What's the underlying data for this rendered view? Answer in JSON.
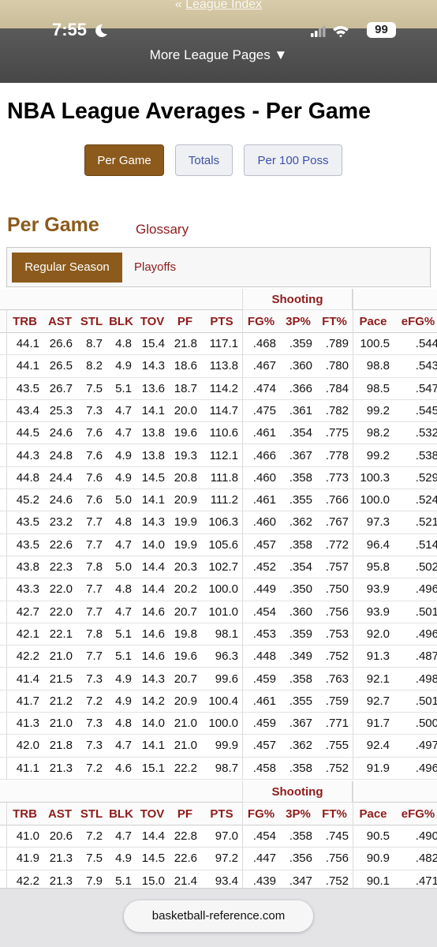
{
  "status_bar": {
    "time": "7:55",
    "battery": "99"
  },
  "top_link": "League Index",
  "nav": {
    "more": "More League Pages ▼"
  },
  "header": {
    "title": "NBA League Averages - Per Game"
  },
  "buttons": [
    "Per Game",
    "Totals",
    "Per 100 Poss"
  ],
  "section": {
    "heading": "Per Game",
    "glossary": "Glossary"
  },
  "tabs": [
    "Regular Season",
    "Playoffs"
  ],
  "table": {
    "group_header": "Shooting",
    "columns": [
      "TRB",
      "AST",
      "STL",
      "BLK",
      "TOV",
      "PF",
      "PTS",
      "FG%",
      "3P%",
      "FT%",
      "Pace",
      "eFG%"
    ],
    "rows": [
      [
        "44.1",
        "26.6",
        "8.7",
        "4.8",
        "15.4",
        "21.8",
        "117.1",
        ".468",
        ".359",
        ".789",
        "100.5",
        ".544"
      ],
      [
        "44.1",
        "26.5",
        "8.2",
        "4.9",
        "14.3",
        "18.6",
        "113.8",
        ".467",
        ".360",
        ".780",
        "98.8",
        ".543"
      ],
      [
        "43.5",
        "26.7",
        "7.5",
        "5.1",
        "13.6",
        "18.7",
        "114.2",
        ".474",
        ".366",
        ".784",
        "98.5",
        ".547"
      ],
      [
        "43.4",
        "25.3",
        "7.3",
        "4.7",
        "14.1",
        "20.0",
        "114.7",
        ".475",
        ".361",
        ".782",
        "99.2",
        ".545"
      ],
      [
        "44.5",
        "24.6",
        "7.6",
        "4.7",
        "13.8",
        "19.6",
        "110.6",
        ".461",
        ".354",
        ".775",
        "98.2",
        ".532"
      ],
      [
        "44.3",
        "24.8",
        "7.6",
        "4.9",
        "13.8",
        "19.3",
        "112.1",
        ".466",
        ".367",
        ".778",
        "99.2",
        ".538"
      ],
      [
        "44.8",
        "24.4",
        "7.6",
        "4.9",
        "14.5",
        "20.8",
        "111.8",
        ".460",
        ".358",
        ".773",
        "100.3",
        ".529"
      ],
      [
        "45.2",
        "24.6",
        "7.6",
        "5.0",
        "14.1",
        "20.9",
        "111.2",
        ".461",
        ".355",
        ".766",
        "100.0",
        ".524"
      ],
      [
        "43.5",
        "23.2",
        "7.7",
        "4.8",
        "14.3",
        "19.9",
        "106.3",
        ".460",
        ".362",
        ".767",
        "97.3",
        ".521"
      ],
      [
        "43.5",
        "22.6",
        "7.7",
        "4.7",
        "14.0",
        "19.9",
        "105.6",
        ".457",
        ".358",
        ".772",
        "96.4",
        ".514"
      ],
      [
        "43.8",
        "22.3",
        "7.8",
        "5.0",
        "14.4",
        "20.3",
        "102.7",
        ".452",
        ".354",
        ".757",
        "95.8",
        ".502"
      ],
      [
        "43.3",
        "22.0",
        "7.7",
        "4.8",
        "14.4",
        "20.2",
        "100.0",
        ".449",
        ".350",
        ".750",
        "93.9",
        ".496"
      ],
      [
        "42.7",
        "22.0",
        "7.7",
        "4.7",
        "14.6",
        "20.7",
        "101.0",
        ".454",
        ".360",
        ".756",
        "93.9",
        ".501"
      ],
      [
        "42.1",
        "22.1",
        "7.8",
        "5.1",
        "14.6",
        "19.8",
        "98.1",
        ".453",
        ".359",
        ".753",
        "92.0",
        ".496"
      ],
      [
        "42.2",
        "21.0",
        "7.7",
        "5.1",
        "14.6",
        "19.6",
        "96.3",
        ".448",
        ".349",
        ".752",
        "91.3",
        ".487"
      ],
      [
        "41.4",
        "21.5",
        "7.3",
        "4.9",
        "14.3",
        "20.7",
        "99.6",
        ".459",
        ".358",
        ".763",
        "92.1",
        ".498"
      ],
      [
        "41.7",
        "21.2",
        "7.2",
        "4.9",
        "14.2",
        "20.9",
        "100.4",
        ".461",
        ".355",
        ".759",
        "92.7",
        ".501"
      ],
      [
        "41.3",
        "21.0",
        "7.3",
        "4.8",
        "14.0",
        "21.0",
        "100.0",
        ".459",
        ".367",
        ".771",
        "91.7",
        ".500"
      ],
      [
        "42.0",
        "21.8",
        "7.3",
        "4.7",
        "14.1",
        "21.0",
        "99.9",
        ".457",
        ".362",
        ".755",
        "92.4",
        ".497"
      ],
      [
        "41.1",
        "21.3",
        "7.2",
        "4.6",
        "15.1",
        "22.2",
        "98.7",
        ".458",
        ".358",
        ".752",
        "91.9",
        ".496"
      ]
    ],
    "rows_2": [
      [
        "41.0",
        "20.6",
        "7.2",
        "4.7",
        "14.4",
        "22.8",
        "97.0",
        ".454",
        ".358",
        ".745",
        "90.5",
        ".490"
      ],
      [
        "41.9",
        "21.3",
        "7.5",
        "4.9",
        "14.5",
        "22.6",
        "97.2",
        ".447",
        ".356",
        ".756",
        "90.9",
        ".482"
      ],
      [
        "42.2",
        "21.3",
        "7.9",
        "5.1",
        "15.0",
        "21.4",
        "93.4",
        ".439",
        ".347",
        ".752",
        "90.1",
        ".471"
      ]
    ]
  },
  "url": "basketball-reference.com"
}
